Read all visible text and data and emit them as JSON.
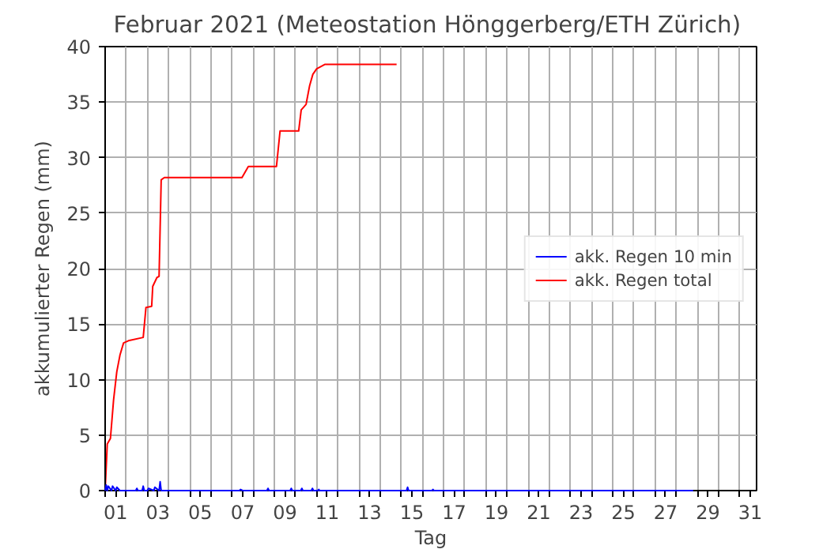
{
  "chart_data": {
    "type": "line",
    "title": "Februar 2021  (Meteostation Hönggerberg/ETH Zürich)",
    "xlabel": "Tag",
    "ylabel": "akkumulierter Regen (mm)",
    "xlim": [
      1,
      31.8
    ],
    "ylim": [
      0,
      40
    ],
    "xticks": [
      {
        "value": 1,
        "label": null
      },
      {
        "value": 2,
        "label": null
      },
      {
        "value": 3,
        "label": null
      },
      {
        "value": 4,
        "label": null
      },
      {
        "value": 5,
        "label": null
      },
      {
        "value": 6,
        "label": null
      },
      {
        "value": 7,
        "label": null
      },
      {
        "value": 8,
        "label": null
      },
      {
        "value": 9,
        "label": null
      },
      {
        "value": 10,
        "label": null
      },
      {
        "value": 11,
        "label": null
      },
      {
        "value": 12,
        "label": null
      },
      {
        "value": 13,
        "label": null
      },
      {
        "value": 14,
        "label": null
      },
      {
        "value": 15,
        "label": null
      },
      {
        "value": 16,
        "label": null
      },
      {
        "value": 17,
        "label": null
      },
      {
        "value": 18,
        "label": null
      },
      {
        "value": 19,
        "label": null
      },
      {
        "value": 20,
        "label": null
      },
      {
        "value": 21,
        "label": null
      },
      {
        "value": 22,
        "label": null
      },
      {
        "value": 23,
        "label": null
      },
      {
        "value": 24,
        "label": null
      },
      {
        "value": 25,
        "label": null
      },
      {
        "value": 26,
        "label": null
      },
      {
        "value": 27,
        "label": null
      },
      {
        "value": 28,
        "label": null
      },
      {
        "value": 29,
        "label": null
      },
      {
        "value": 30,
        "label": null
      },
      {
        "value": 31,
        "label": null
      },
      {
        "value": 1.5,
        "label": "01"
      },
      {
        "value": 3.5,
        "label": "03"
      },
      {
        "value": 5.5,
        "label": "05"
      },
      {
        "value": 7.5,
        "label": "07"
      },
      {
        "value": 9.5,
        "label": "09"
      },
      {
        "value": 11.5,
        "label": "11"
      },
      {
        "value": 13.5,
        "label": "13"
      },
      {
        "value": 15.5,
        "label": "15"
      },
      {
        "value": 17.5,
        "label": "17"
      },
      {
        "value": 19.5,
        "label": "19"
      },
      {
        "value": 21.5,
        "label": "21"
      },
      {
        "value": 23.5,
        "label": "23"
      },
      {
        "value": 25.5,
        "label": "25"
      },
      {
        "value": 27.5,
        "label": "27"
      },
      {
        "value": 29.5,
        "label": "29"
      },
      {
        "value": 31.5,
        "label": "31"
      }
    ],
    "yticks": [
      0,
      5,
      10,
      15,
      20,
      25,
      30,
      35,
      40
    ],
    "grid": true,
    "legend": "right",
    "line_style": "solid",
    "marker": "none",
    "series": [
      {
        "name": "akk. Regen 10 min",
        "color": "#0000ff",
        "x": [
          1.0,
          1.05,
          1.1,
          1.15,
          1.3,
          1.35,
          1.5,
          1.55,
          1.7,
          1.75,
          2.0,
          2.45,
          2.5,
          2.55,
          2.75,
          2.8,
          2.85,
          3.0,
          3.05,
          3.3,
          3.35,
          3.55,
          3.6,
          3.65,
          3.8,
          7.35,
          7.4,
          7.5,
          8.65,
          8.7,
          8.75,
          9.75,
          9.8,
          9.85,
          10.25,
          10.3,
          10.35,
          10.75,
          10.8,
          10.85,
          11.05,
          11.1,
          11.15,
          15.25,
          15.3,
          15.35,
          16.45,
          16.5,
          16.55,
          28.8
        ],
        "values": [
          0,
          0.5,
          0,
          0.4,
          0,
          0.4,
          0,
          0.3,
          0,
          0,
          0,
          0,
          0.2,
          0,
          0,
          0.4,
          0,
          0,
          0.2,
          0,
          0.3,
          0,
          0.8,
          0,
          0,
          0,
          0.1,
          0,
          0,
          0.2,
          0,
          0,
          0.2,
          0,
          0,
          0.2,
          0,
          0,
          0.2,
          0,
          0,
          0.1,
          0,
          0,
          0.3,
          0,
          0,
          0.1,
          0,
          0
        ]
      },
      {
        "name": "akk. Regen total",
        "color": "#ff0000",
        "x": [
          1.0,
          1.1,
          1.25,
          1.4,
          1.55,
          1.7,
          1.87,
          2.1,
          2.8,
          2.93,
          3.2,
          3.25,
          3.45,
          3.55,
          3.65,
          3.8,
          7.47,
          7.77,
          9.1,
          9.27,
          10.15,
          10.27,
          10.5,
          10.67,
          10.82,
          11.0,
          11.4,
          14.78
        ],
        "values": [
          0,
          4.2,
          4.7,
          8.2,
          10.7,
          12.2,
          13.3,
          13.5,
          13.8,
          16.5,
          16.6,
          18.4,
          19.2,
          19.3,
          28.0,
          28.2,
          28.2,
          29.2,
          29.2,
          32.4,
          32.4,
          34.3,
          34.8,
          36.5,
          37.5,
          38.0,
          38.4,
          38.4
        ]
      }
    ]
  }
}
